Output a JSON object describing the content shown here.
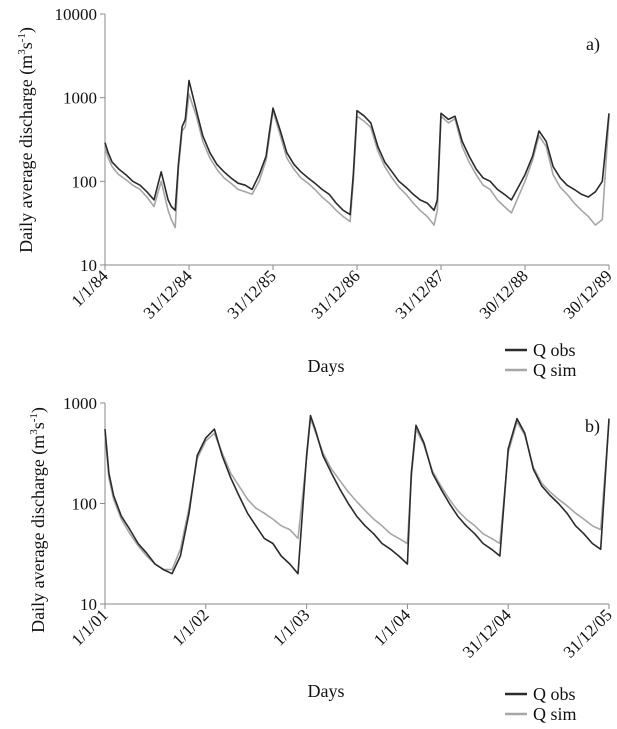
{
  "chart_data": [
    {
      "type": "line",
      "panel_label": "a)",
      "title": "",
      "xlabel": "Days",
      "ylabel": "Daily average discharge (m3s-1)",
      "ylabel_parts": {
        "prefix": "Daily average discharge (m",
        "sup1": "3",
        "mid": "s",
        "sup2": "-1",
        "suffix": ")"
      },
      "y_scale": "log",
      "ylim": [
        10,
        10000
      ],
      "y_ticks": [
        10,
        100,
        1000,
        10000
      ],
      "y_tick_labels": [
        "10",
        "100",
        "1000",
        "10000"
      ],
      "xlim": [
        "1/1/84",
        "30/12/89"
      ],
      "x_ticks": [
        "1/1/84",
        "31/12/84",
        "31/12/85",
        "31/12/86",
        "31/12/87",
        "30/12/88",
        "30/12/89"
      ],
      "x_tick_labels": [
        "1/1/84",
        "31/12/84",
        "31/12/85",
        "31/12/86",
        "31/12/87",
        "30/12/88",
        "30/12/89"
      ],
      "legend": {
        "placement": "below-right",
        "entries": [
          "Q obs",
          "Q sim"
        ]
      },
      "series": [
        {
          "name": "Q obs",
          "color": "#2b2b2b",
          "x": [
            "1/1/84",
            "15/1/84",
            "1/2/84",
            "1/3/84",
            "1/4/84",
            "1/5/84",
            "1/6/84",
            "1/7/84",
            "1/8/84",
            "1/9/84",
            "1/10/84",
            "15/10/84",
            "1/11/84",
            "15/11/84",
            "1/12/84",
            "15/12/84",
            "31/12/84",
            "1/2/85",
            "1/3/85",
            "1/4/85",
            "1/5/85",
            "1/6/85",
            "1/7/85",
            "1/8/85",
            "1/9/85",
            "1/10/85",
            "1/11/85",
            "1/12/85",
            "15/12/85",
            "31/12/85",
            "1/2/86",
            "1/3/86",
            "1/4/86",
            "1/5/86",
            "1/6/86",
            "1/7/86",
            "1/8/86",
            "1/9/86",
            "1/10/86",
            "1/11/86",
            "1/12/86",
            "15/12/86",
            "31/12/86",
            "1/2/87",
            "1/3/87",
            "1/4/87",
            "1/5/87",
            "1/6/87",
            "1/7/87",
            "1/8/87",
            "1/9/87",
            "1/10/87",
            "1/11/87",
            "1/12/87",
            "15/12/87",
            "31/12/87",
            "1/2/88",
            "1/3/88",
            "1/4/88",
            "1/5/88",
            "1/6/88",
            "1/7/88",
            "1/8/88",
            "1/9/88",
            "1/10/88",
            "1/11/88",
            "30/12/88",
            "1/2/89",
            "1/3/89",
            "1/4/89",
            "1/5/89",
            "1/6/89",
            "1/7/89",
            "1/8/89",
            "1/9/89",
            "1/10/89",
            "1/11/89",
            "1/12/89",
            "30/12/89"
          ],
          "y": [
            290,
            220,
            170,
            140,
            120,
            100,
            90,
            75,
            60,
            130,
            60,
            50,
            45,
            160,
            450,
            550,
            1600,
            700,
            350,
            220,
            160,
            130,
            110,
            95,
            90,
            80,
            120,
            200,
            380,
            750,
            400,
            220,
            160,
            130,
            110,
            95,
            80,
            70,
            55,
            45,
            40,
            120,
            700,
            600,
            500,
            260,
            170,
            130,
            100,
            85,
            70,
            60,
            55,
            45,
            60,
            650,
            550,
            600,
            300,
            200,
            140,
            110,
            100,
            80,
            70,
            60,
            120,
            200,
            400,
            300,
            150,
            110,
            90,
            80,
            70,
            65,
            75,
            100,
            650
          ]
        },
        {
          "name": "Q sim",
          "color": "#a6a6a6",
          "x": [
            "1/1/84",
            "15/1/84",
            "1/2/84",
            "1/3/84",
            "1/4/84",
            "1/5/84",
            "1/6/84",
            "1/7/84",
            "1/8/84",
            "1/9/84",
            "1/10/84",
            "15/10/84",
            "1/11/84",
            "15/11/84",
            "1/12/84",
            "15/12/84",
            "31/12/84",
            "1/2/85",
            "1/3/85",
            "1/4/85",
            "1/5/85",
            "1/6/85",
            "1/7/85",
            "1/8/85",
            "1/9/85",
            "1/10/85",
            "1/11/85",
            "1/12/85",
            "15/12/85",
            "31/12/85",
            "1/2/86",
            "1/3/86",
            "1/4/86",
            "1/5/86",
            "1/6/86",
            "1/7/86",
            "1/8/86",
            "1/9/86",
            "1/10/86",
            "1/11/86",
            "1/12/86",
            "15/12/86",
            "31/12/86",
            "1/2/87",
            "1/3/87",
            "1/4/87",
            "1/5/87",
            "1/6/87",
            "1/7/87",
            "1/8/87",
            "1/9/87",
            "1/10/87",
            "1/11/87",
            "1/12/87",
            "15/12/87",
            "31/12/87",
            "1/2/88",
            "1/3/88",
            "1/4/88",
            "1/5/88",
            "1/6/88",
            "1/7/88",
            "1/8/88",
            "1/9/88",
            "1/10/88",
            "1/11/88",
            "30/12/88",
            "1/2/89",
            "1/3/89",
            "1/4/89",
            "1/5/89",
            "1/6/89",
            "1/7/89",
            "1/8/89",
            "1/9/89",
            "1/10/89",
            "1/11/89",
            "1/12/89",
            "30/12/89"
          ],
          "y": [
            250,
            190,
            150,
            120,
            105,
            90,
            80,
            65,
            50,
            100,
            45,
            35,
            28,
            140,
            400,
            450,
            1100,
            600,
            300,
            190,
            140,
            110,
            95,
            80,
            75,
            70,
            100,
            180,
            330,
            700,
            350,
            190,
            140,
            110,
            95,
            80,
            65,
            55,
            45,
            38,
            33,
            100,
            600,
            520,
            440,
            230,
            150,
            110,
            85,
            70,
            55,
            45,
            38,
            30,
            45,
            600,
            500,
            560,
            260,
            170,
            120,
            90,
            80,
            60,
            50,
            42,
            100,
            180,
            350,
            260,
            120,
            85,
            70,
            55,
            45,
            38,
            30,
            35,
            600
          ]
        }
      ]
    },
    {
      "type": "line",
      "panel_label": "b)",
      "title": "",
      "xlabel": "Days",
      "ylabel": "Daily average discharge (m3s-1)",
      "ylabel_parts": {
        "prefix": "Daily average discharge (m",
        "sup1": "3",
        "mid": "s",
        "sup2": "-1",
        "suffix": ")"
      },
      "y_scale": "log",
      "ylim": [
        10,
        1000
      ],
      "y_ticks": [
        10,
        100,
        1000
      ],
      "y_tick_labels": [
        "10",
        "100",
        "1000"
      ],
      "xlim": [
        "1/1/01",
        "31/12/05"
      ],
      "x_ticks": [
        "1/1/01",
        "1/1/02",
        "1/1/03",
        "1/1/04",
        "31/12/04",
        "31/12/05"
      ],
      "x_tick_labels": [
        "1/1/01",
        "1/1/02",
        "1/1/03",
        "1/1/04",
        "31/12/04",
        "31/12/05"
      ],
      "legend": {
        "placement": "below-right",
        "entries": [
          "Q obs",
          "Q sim"
        ]
      },
      "series": [
        {
          "name": "Q obs",
          "color": "#2b2b2b",
          "x": [
            "1/1/01",
            "15/1/01",
            "1/2/01",
            "1/3/01",
            "1/4/01",
            "1/5/01",
            "1/6/01",
            "1/7/01",
            "1/8/01",
            "1/9/01",
            "1/10/01",
            "1/11/01",
            "1/12/01",
            "1/1/02",
            "1/2/02",
            "1/3/02",
            "1/4/02",
            "1/5/02",
            "1/6/02",
            "1/7/02",
            "1/8/02",
            "1/9/02",
            "1/10/02",
            "1/11/02",
            "1/12/02",
            "1/1/03",
            "15/1/03",
            "1/2/03",
            "1/3/03",
            "1/4/03",
            "1/5/03",
            "1/6/03",
            "1/7/03",
            "1/8/03",
            "1/9/03",
            "1/10/03",
            "1/11/03",
            "1/12/03",
            "1/1/04",
            "15/1/04",
            "1/2/04",
            "1/3/04",
            "1/4/04",
            "1/5/04",
            "1/6/04",
            "1/7/04",
            "1/8/04",
            "1/9/04",
            "1/10/04",
            "1/11/04",
            "1/12/04",
            "31/12/04",
            "1/2/05",
            "1/3/05",
            "1/4/05",
            "1/5/05",
            "1/6/05",
            "1/7/05",
            "1/8/05",
            "1/9/05",
            "1/10/05",
            "1/11/05",
            "1/12/05",
            "31/12/05"
          ],
          "y": [
            550,
            200,
            120,
            75,
            55,
            40,
            32,
            25,
            22,
            20,
            30,
            80,
            300,
            450,
            550,
            300,
            180,
            120,
            80,
            60,
            45,
            40,
            30,
            25,
            20,
            300,
            750,
            550,
            300,
            200,
            140,
            100,
            75,
            60,
            50,
            40,
            35,
            30,
            25,
            200,
            600,
            400,
            200,
            140,
            100,
            75,
            60,
            50,
            40,
            35,
            30,
            350,
            700,
            500,
            220,
            150,
            120,
            100,
            80,
            60,
            50,
            40,
            35,
            700
          ]
        },
        {
          "name": "Q sim",
          "color": "#a6a6a6",
          "x": [
            "1/1/01",
            "15/1/01",
            "1/2/01",
            "1/3/01",
            "1/4/01",
            "1/5/01",
            "1/6/01",
            "1/7/01",
            "1/8/01",
            "1/9/01",
            "1/10/01",
            "1/11/01",
            "1/12/01",
            "1/1/02",
            "1/2/02",
            "1/3/02",
            "1/4/02",
            "1/5/02",
            "1/6/02",
            "1/7/02",
            "1/8/02",
            "1/9/02",
            "1/10/02",
            "1/11/02",
            "1/12/02",
            "1/1/03",
            "15/1/03",
            "1/2/03",
            "1/3/03",
            "1/4/03",
            "1/5/03",
            "1/6/03",
            "1/7/03",
            "1/8/03",
            "1/9/03",
            "1/10/03",
            "1/11/03",
            "1/12/03",
            "1/1/04",
            "15/1/04",
            "1/2/04",
            "1/3/04",
            "1/4/04",
            "1/5/04",
            "1/6/04",
            "1/7/04",
            "1/8/04",
            "1/9/04",
            "1/10/04",
            "1/11/04",
            "1/12/04",
            "31/12/04",
            "1/2/05",
            "1/3/05",
            "1/4/05",
            "1/5/05",
            "1/6/05",
            "1/7/05",
            "1/8/05",
            "1/9/05",
            "1/10/05",
            "1/11/05",
            "1/12/05",
            "31/12/05"
          ],
          "y": [
            500,
            180,
            110,
            70,
            50,
            38,
            30,
            25,
            22,
            22,
            35,
            90,
            280,
            420,
            500,
            320,
            200,
            150,
            110,
            90,
            80,
            70,
            60,
            55,
            45,
            280,
            700,
            520,
            320,
            220,
            170,
            130,
            105,
            85,
            70,
            60,
            50,
            45,
            40,
            180,
            550,
            380,
            210,
            150,
            110,
            85,
            70,
            60,
            50,
            45,
            40,
            320,
            650,
            480,
            230,
            160,
            130,
            110,
            95,
            80,
            70,
            60,
            55,
            650
          ]
        }
      ]
    }
  ]
}
